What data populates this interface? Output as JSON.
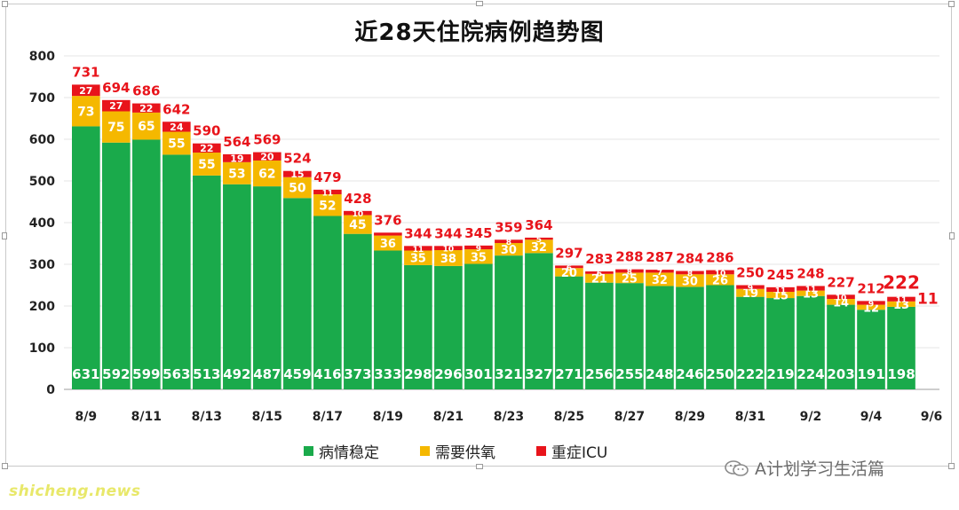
{
  "chart_data": {
    "type": "bar",
    "stacked": true,
    "title": "近28天住院病例趋势图",
    "categories": [
      "8/9",
      "8/10",
      "8/11",
      "8/12",
      "8/13",
      "8/14",
      "8/15",
      "8/16",
      "8/17",
      "8/18",
      "8/19",
      "8/20",
      "8/21",
      "8/22",
      "8/23",
      "8/24",
      "8/25",
      "8/26",
      "8/27",
      "8/28",
      "8/29",
      "8/30",
      "8/31",
      "9/1",
      "9/2",
      "9/3",
      "9/4",
      "9/5",
      "9/6"
    ],
    "x_tick_labels": [
      "8/9",
      "8/11",
      "8/13",
      "8/15",
      "8/17",
      "8/19",
      "8/21",
      "8/23",
      "8/25",
      "8/27",
      "8/29",
      "8/31",
      "9/2",
      "9/4",
      "9/6"
    ],
    "y_ticks": [
      "0",
      "100",
      "200",
      "300",
      "400",
      "500",
      "600",
      "700",
      "800"
    ],
    "ylim": [
      0,
      800
    ],
    "grid": true,
    "legend_position": "bottom",
    "series": [
      {
        "name": "病情稳定",
        "color": "#1aaa4b",
        "values": [
          631,
          592,
          599,
          563,
          513,
          492,
          487,
          459,
          416,
          373,
          333,
          298,
          296,
          301,
          321,
          327,
          271,
          256,
          255,
          248,
          246,
          250,
          222,
          219,
          224,
          203,
          191,
          198,
          null
        ]
      },
      {
        "name": "需要供氧",
        "color": "#f5b800",
        "values": [
          73,
          75,
          65,
          55,
          55,
          53,
          62,
          50,
          52,
          45,
          36,
          35,
          38,
          35,
          30,
          32,
          20,
          21,
          25,
          32,
          30,
          26,
          19,
          15,
          13,
          14,
          12,
          13,
          null
        ]
      },
      {
        "name": "重症ICU",
        "color": "#e8141b",
        "values": [
          27,
          27,
          22,
          24,
          22,
          19,
          20,
          15,
          11,
          10,
          7,
          11,
          10,
          9,
          8,
          5,
          6,
          6,
          8,
          7,
          8,
          10,
          9,
          11,
          11,
          10,
          9,
          11,
          null
        ]
      }
    ],
    "totals": [
      731,
      694,
      686,
      642,
      590,
      564,
      569,
      524,
      479,
      428,
      376,
      344,
      344,
      345,
      359,
      364,
      297,
      283,
      288,
      287,
      284,
      286,
      250,
      245,
      248,
      227,
      212,
      222,
      null
    ],
    "small_label_shown": [
      true,
      true,
      true,
      true,
      true,
      true,
      true,
      true,
      true,
      true,
      false,
      true,
      true,
      true,
      true,
      true,
      true,
      true,
      true,
      true,
      true,
      true,
      true,
      true,
      true,
      true,
      true,
      true,
      false
    ],
    "last_icu_callout": "11"
  },
  "legend": {
    "items": [
      {
        "label": "病情稳定",
        "color": "#1aaa4b"
      },
      {
        "label": "需要供氧",
        "color": "#f5b800"
      },
      {
        "label": "重症ICU",
        "color": "#e8141b"
      }
    ]
  },
  "watermark": {
    "text": "A计划学习生活篇",
    "icon": "wechat-icon"
  },
  "footer": {
    "logo_text": "shicheng.news"
  },
  "colors": {
    "total_label": "#e8141b",
    "grid": "#e6e6e6",
    "axis": "#b0b0b0"
  }
}
